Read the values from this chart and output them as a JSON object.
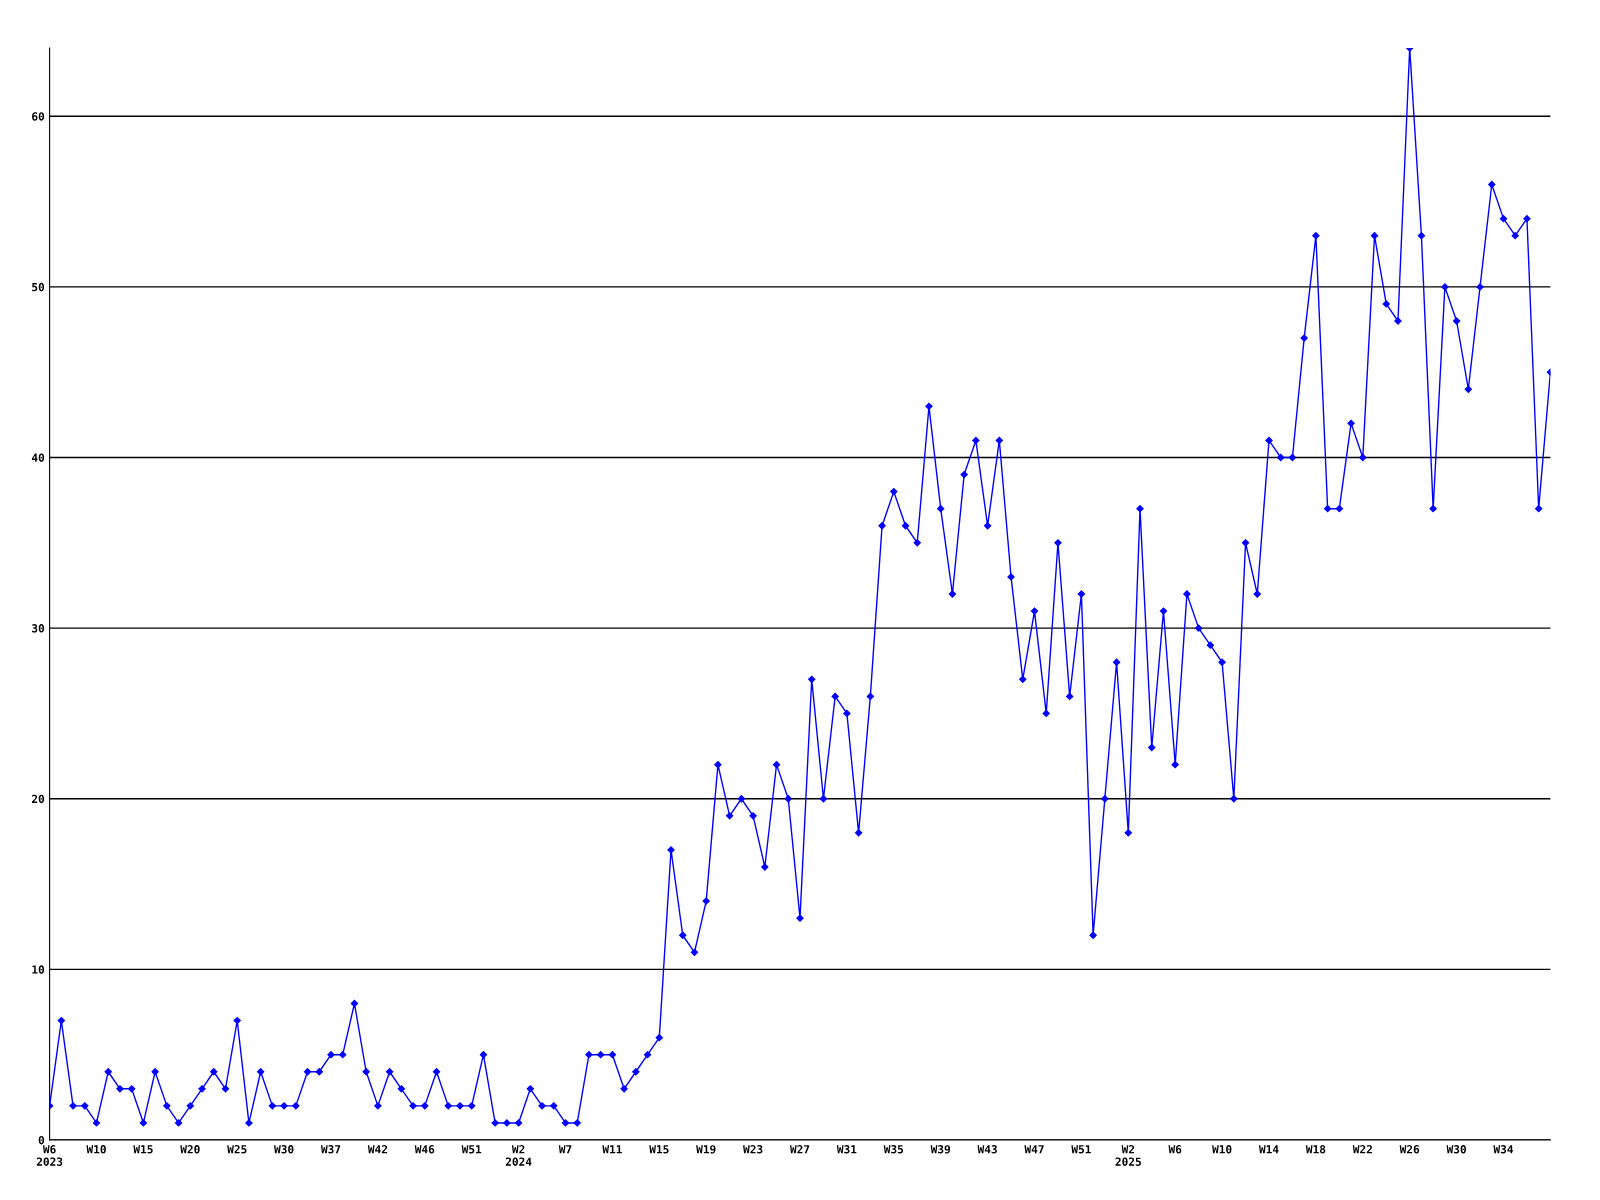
{
  "chart_data": {
    "type": "line",
    "categories": [
      "W6\n2023",
      null,
      null,
      null,
      "W10",
      null,
      null,
      null,
      "W15",
      null,
      null,
      null,
      "W20",
      null,
      null,
      null,
      "W25",
      null,
      null,
      null,
      "W30",
      null,
      null,
      null,
      "W37",
      null,
      null,
      null,
      "W42",
      null,
      null,
      null,
      "W46",
      null,
      null,
      null,
      "W51",
      null,
      null,
      null,
      "W2\n2024",
      null,
      null,
      null,
      "W7",
      null,
      null,
      null,
      "W11",
      null,
      null,
      null,
      "W15",
      null,
      null,
      null,
      "W19",
      null,
      null,
      null,
      "W23",
      null,
      null,
      null,
      "W27",
      null,
      null,
      null,
      "W31",
      null,
      null,
      null,
      "W35",
      null,
      null,
      null,
      "W39",
      null,
      null,
      null,
      "W43",
      null,
      null,
      null,
      "W47",
      null,
      null,
      null,
      "W51",
      null,
      null,
      null,
      "W2\n2025",
      null,
      null,
      null,
      "W6",
      null,
      null,
      null,
      "W10",
      null,
      null,
      null,
      "W14",
      null,
      null,
      null,
      "W18",
      null,
      null,
      null,
      "W22",
      null,
      null,
      null,
      "W26",
      null,
      null,
      null,
      "W30",
      null,
      null,
      null,
      "W34",
      null,
      null,
      null,
      null
    ],
    "series": [
      {
        "color": "#0000ff",
        "values": [
          2,
          7,
          2,
          2,
          1,
          4,
          3,
          3,
          1,
          4,
          2,
          1,
          2,
          3,
          4,
          3,
          7,
          1,
          4,
          2,
          2,
          2,
          4,
          4,
          5,
          5,
          8,
          4,
          2,
          4,
          3,
          2,
          2,
          4,
          2,
          2,
          2,
          5,
          1,
          1,
          1,
          3,
          2,
          2,
          1,
          1,
          5,
          5,
          5,
          3,
          4,
          5,
          6,
          17,
          12,
          11,
          14,
          22,
          19,
          20,
          19,
          16,
          22,
          20,
          13,
          27,
          20,
          26,
          25,
          18,
          26,
          36,
          38,
          36,
          35,
          43,
          37,
          32,
          39,
          41,
          36,
          41,
          33,
          27,
          31,
          25,
          35,
          26,
          32,
          12,
          20,
          28,
          18,
          37,
          23,
          31,
          22,
          32,
          30,
          29,
          28,
          20,
          35,
          32,
          41,
          40,
          40,
          47,
          53,
          37,
          37,
          42,
          40,
          53,
          49,
          48,
          64,
          53,
          37,
          50,
          48,
          44,
          50,
          56,
          54,
          53,
          54,
          37,
          45
        ]
      }
    ],
    "ylim": [
      0,
      64
    ],
    "yticks": [
      0,
      10,
      20,
      30,
      40,
      50,
      60
    ],
    "grid": "y",
    "legend": false,
    "marker": "diamond",
    "line_style": "solid"
  }
}
